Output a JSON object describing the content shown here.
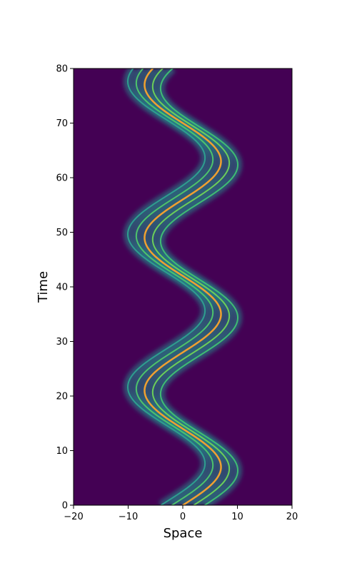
{
  "chart_data": {
    "type": "heatmap",
    "title": "",
    "xlabel": "Space",
    "ylabel": "Time",
    "xlim": [
      -20,
      20
    ],
    "ylim": [
      0,
      80
    ],
    "x_ticks": [
      -20,
      -10,
      0,
      10,
      20
    ],
    "y_ticks": [
      0,
      10,
      20,
      30,
      40,
      50,
      60,
      70,
      80
    ],
    "x_tick_labels": [
      "−20",
      "−10",
      "0",
      "10",
      "20"
    ],
    "y_tick_labels": [
      "0",
      "10",
      "20",
      "30",
      "40",
      "50",
      "60",
      "70",
      "80"
    ],
    "background_color": "#440154",
    "colormap": "viridis",
    "pattern": {
      "description_units": "space vs time",
      "center_amplitude": 7,
      "oscillation_period": 28,
      "phase_offset": 0,
      "band_offsets": [
        -4,
        -2,
        0,
        2,
        4
      ]
    },
    "series": [
      {
        "name": "outer-left",
        "offset": -4,
        "color": "#2f9e8f"
      },
      {
        "name": "inner-left",
        "offset": -2,
        "color": "#4ec36b"
      },
      {
        "name": "center",
        "offset": 0,
        "color": "#f0a030"
      },
      {
        "name": "inner-right",
        "offset": 2,
        "color": "#6cce59"
      },
      {
        "name": "outer-right",
        "offset": 4,
        "color": "#3fbc73"
      }
    ]
  }
}
